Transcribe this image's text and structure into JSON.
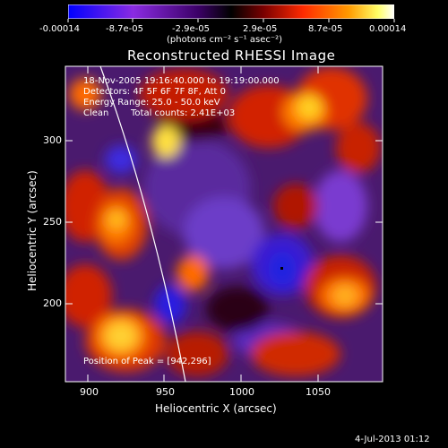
{
  "colorbar": {
    "ticks": [
      "-0.00014",
      "-8.7e-05",
      "-2.9e-05",
      "2.9e-05",
      "8.7e-05",
      "0.00014"
    ],
    "units": "(photons cm⁻² s⁻¹ asec⁻²)",
    "colors": [
      "#0000ff",
      "#8a2be2",
      "#3b0066",
      "#000000",
      "#7a0000",
      "#ff2a00",
      "#ff9a00",
      "#ffff66",
      "#ffffff"
    ]
  },
  "plot": {
    "title": "Reconstructed RHESSI Image",
    "xlabel": "Heliocentric X (arcsec)",
    "ylabel": "Heliocentric Y (arcsec)",
    "xticks": [
      "900",
      "950",
      "1000",
      "1050"
    ],
    "yticks": [
      "300",
      "250",
      "200"
    ],
    "xrange": [
      888,
      1082
    ],
    "yrange": [
      148,
      327
    ],
    "overlay": {
      "time_range": "18-Nov-2005 19:16:40.000 to 19:19:00.000",
      "detectors": "Detectors: 4F 5F 6F 7F 8F, Att 0",
      "energy": "Energy Range: 25.0 - 50.0 keV",
      "method": "Clean",
      "counts": "Total counts: 2.41E+03",
      "peak": "Position of Peak = [942,296]"
    },
    "limb_color": "#ffffff"
  },
  "footer": {
    "timestamp": "4-Jul-2013 01:12"
  }
}
